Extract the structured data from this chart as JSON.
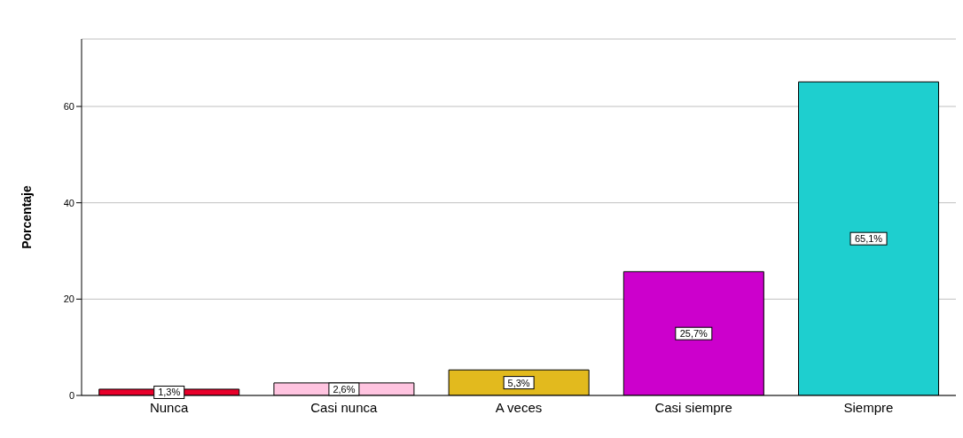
{
  "chart_data": {
    "type": "bar",
    "ylabel": "Porcentaje",
    "categories": [
      "Nunca",
      "Casi nunca",
      "A veces",
      "Casi siempre",
      "Siempre"
    ],
    "values": [
      1.3,
      2.6,
      5.3,
      25.7,
      65.1
    ],
    "colors": [
      "#e8002a",
      "#ffc4e0",
      "#e2ba1e",
      "#cc00cc",
      "#1ecfcf"
    ],
    "value_labels": [
      "1,3%",
      "2,6%",
      "5,3%",
      "25,7%",
      "65,1%"
    ],
    "ylim": [
      0,
      74
    ],
    "yticks": [
      0,
      20,
      40,
      60
    ],
    "grid": "y"
  }
}
